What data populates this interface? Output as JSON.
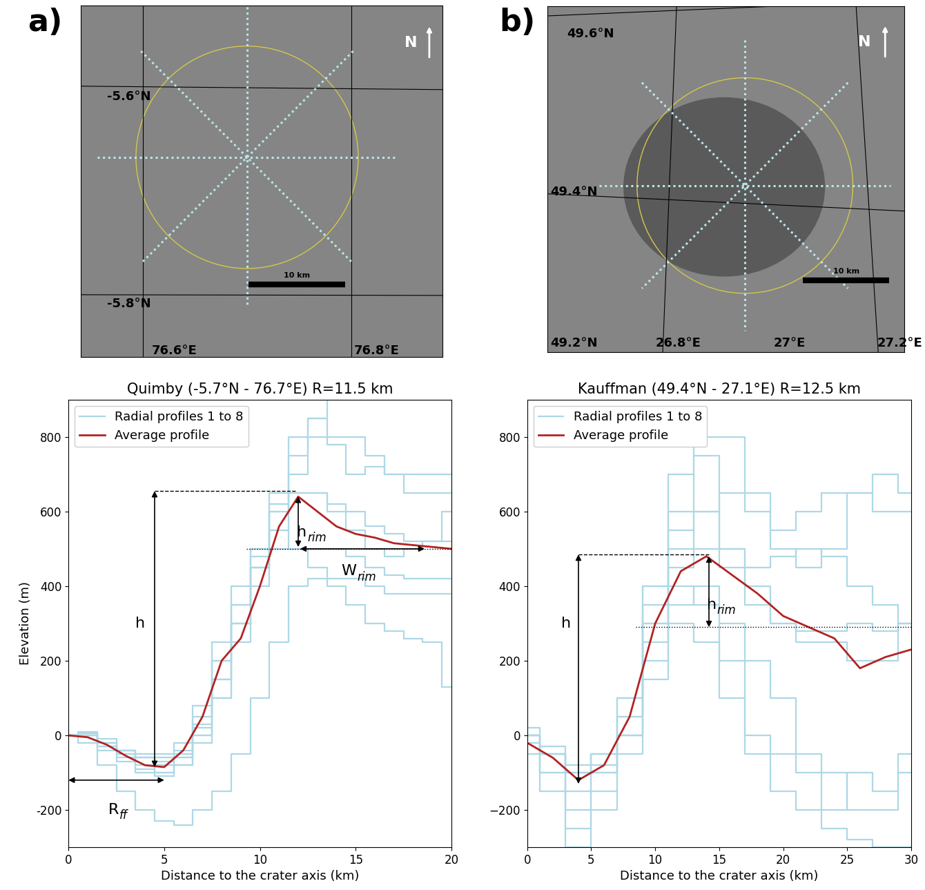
{
  "figure": {
    "panel_labels": [
      "a)",
      "b)"
    ]
  },
  "images": [
    {
      "north": "N",
      "scale_bar": {
        "length": 10,
        "label": "10 km"
      },
      "crater_radius_km": 11.5,
      "lat_labels": [
        "-5.6°N",
        "-5.8°N"
      ],
      "lon_labels": [
        "76.6°E",
        "76.8°E"
      ]
    },
    {
      "north": "N",
      "scale_bar": {
        "length": 10,
        "label": "10 km"
      },
      "crater_radius_km": 12.5,
      "lat_labels": [
        "49.6°N",
        "49.4°N",
        "49.2°N"
      ],
      "lon_labels": [
        "26.8°E",
        "27°E",
        "27.2°E"
      ]
    }
  ],
  "chart_data": [
    {
      "type": "line",
      "title": "Quimby (-5.7°N - 76.7°E) R=11.5 km",
      "xlabel": "Distance to the crater axis (km)",
      "ylabel": "Elevation (m)",
      "xlim": [
        0,
        20
      ],
      "ylim": [
        -300,
        900
      ],
      "xticks": [
        0,
        5,
        10,
        15,
        20
      ],
      "yticks": [
        -200,
        0,
        200,
        400,
        600,
        800
      ],
      "legend": "upper left",
      "x": [
        0,
        1,
        2,
        3,
        4,
        5,
        6,
        7,
        8,
        9,
        10,
        11,
        12,
        13,
        14,
        15,
        16,
        17,
        18,
        19,
        20
      ],
      "series": [
        {
          "name": "Radial profiles 1 to 8",
          "color": "#add8e6",
          "line_style": "steps",
          "values": [
            [
              0,
              10,
              -10,
              -40,
              -50,
              -50,
              -20,
              80,
              200,
              350,
              500,
              650,
              650,
              650,
              620,
              600,
              560,
              540,
              520,
              520,
              520
            ],
            [
              0,
              5,
              -20,
              -50,
              -80,
              -100,
              -60,
              20,
              150,
              300,
              450,
              620,
              800,
              800,
              780,
              700,
              720,
              700,
              650,
              650,
              650
            ],
            [
              0,
              0,
              -30,
              -60,
              -100,
              -110,
              -80,
              0,
              100,
              250,
              400,
              600,
              750,
              850,
              900,
              900,
              900,
              900,
              900,
              900,
              900
            ],
            [
              0,
              -20,
              -80,
              -150,
              -200,
              -230,
              -240,
              -200,
              -150,
              -50,
              100,
              250,
              400,
              420,
              420,
              420,
              400,
              380,
              380,
              380,
              380
            ],
            [
              0,
              0,
              -40,
              -70,
              -90,
              -100,
              -80,
              -20,
              100,
              300,
              450,
              500,
              500,
              500,
              500,
              480,
              450,
              430,
              420,
              420,
              420
            ],
            [
              0,
              0,
              -30,
              -50,
              -60,
              -60,
              -40,
              50,
              250,
              400,
              500,
              600,
              650,
              650,
              600,
              550,
              500,
              480,
              500,
              520,
              600
            ],
            [
              0,
              5,
              -20,
              -40,
              -60,
              -70,
              -50,
              30,
              200,
              350,
              480,
              550,
              500,
              450,
              400,
              350,
              300,
              280,
              260,
              250,
              130
            ],
            [
              0,
              0,
              -20,
              -40,
              -60,
              -80,
              -60,
              0,
              150,
              300,
              450,
              550,
              700,
              850,
              800,
              800,
              750,
              700,
              700,
              700,
              700
            ]
          ]
        },
        {
          "name": "Average profile",
          "color": "#b22222",
          "line_style": "solid",
          "values": [
            0,
            -5,
            -25,
            -55,
            -80,
            -85,
            -40,
            50,
            200,
            260,
            400,
            560,
            640,
            600,
            560,
            540,
            530,
            515,
            510,
            505,
            500
          ]
        }
      ],
      "annotations": [
        {
          "type": "double_arrow",
          "from": [
            4.5,
            -85
          ],
          "to": [
            4.5,
            655
          ]
        },
        {
          "type": "dashed",
          "from": [
            4.5,
            655
          ],
          "to": [
            11.9,
            655
          ]
        },
        {
          "type": "double_arrow",
          "from": [
            12,
            640
          ],
          "to": [
            12,
            505
          ]
        },
        {
          "type": "dotted",
          "from": [
            9.3,
            500
          ],
          "to": [
            20,
            500
          ]
        },
        {
          "type": "double_arrow",
          "from": [
            12.1,
            500
          ],
          "to": [
            18.6,
            500
          ]
        },
        {
          "type": "double_arrow",
          "from": [
            0,
            -120
          ],
          "to": [
            5,
            -120
          ]
        },
        {
          "type": "label",
          "text": "h",
          "subscript": "",
          "at": [
            4.0,
            300
          ]
        },
        {
          "type": "label",
          "text": "h",
          "subscript": "rim",
          "at": [
            12.45,
            545
          ]
        },
        {
          "type": "label",
          "text": "W",
          "subscript": "rim",
          "at": [
            15.05,
            440
          ]
        },
        {
          "type": "label",
          "text": "R",
          "subscript": "ff",
          "at": [
            2.65,
            -200
          ]
        }
      ]
    },
    {
      "type": "line",
      "title": "Kauffman (49.4°N - 27.1°E) R=12.5 km",
      "xlabel": "Distance to the crater axis (km)",
      "xlim": [
        0,
        30
      ],
      "ylim": [
        -300,
        900
      ],
      "xticks": [
        0,
        5,
        10,
        15,
        20,
        25,
        30
      ],
      "yticks": [
        {
          "value": -200,
          "label": "−200"
        },
        0,
        200,
        400,
        600,
        800
      ],
      "legend": "upper left",
      "x": [
        0,
        2,
        4,
        6,
        8,
        10,
        12,
        14,
        16,
        18,
        20,
        22,
        24,
        26,
        28,
        30
      ],
      "series": [
        {
          "name": "Radial profiles 1 to 8",
          "color": "#add8e6",
          "line_style": "steps",
          "values": [
            [
              0,
              -100,
              -150,
              -50,
              100,
              400,
              700,
              800,
              800,
              650,
              500,
              450,
              500,
              650,
              700,
              650
            ],
            [
              0,
              -50,
              -200,
              -100,
              0,
              300,
              600,
              750,
              500,
              450,
              480,
              500,
              480,
              400,
              350,
              300
            ],
            [
              -50,
              -100,
              -250,
              -200,
              50,
              350,
              500,
              600,
              650,
              600,
              550,
              600,
              650,
              650,
              600,
              600
            ],
            [
              0,
              -150,
              -300,
              -150,
              50,
              300,
              400,
              350,
              200,
              0,
              -50,
              -100,
              -200,
              -100,
              -150,
              -100
            ],
            [
              20,
              -50,
              -100,
              -100,
              -50,
              150,
              350,
              400,
              300,
              200,
              100,
              -50,
              -100,
              -200,
              -200,
              -50
            ],
            [
              0,
              -50,
              -100,
              -50,
              100,
              400,
              550,
              600,
              500,
              400,
              300,
              250,
              250,
              200,
              200,
              300
            ],
            [
              -20,
              -50,
              -100,
              -80,
              0,
              250,
              450,
              500,
              450,
              350,
              300,
              280,
              280,
              300,
              280,
              300
            ],
            [
              0,
              -30,
              -80,
              -50,
              0,
              200,
              300,
              250,
              100,
              -50,
              -150,
              -200,
              -250,
              -280,
              -300,
              -300
            ]
          ]
        },
        {
          "name": "Average profile",
          "color": "#b22222",
          "line_style": "solid",
          "values": [
            -20,
            -60,
            -120,
            -80,
            50,
            300,
            440,
            480,
            430,
            380,
            320,
            290,
            260,
            180,
            210,
            230
          ]
        }
      ],
      "annotations": [
        {
          "type": "double_arrow",
          "from": [
            4,
            -130
          ],
          "to": [
            4,
            485
          ]
        },
        {
          "type": "dashed",
          "from": [
            4,
            485
          ],
          "to": [
            14.2,
            485
          ]
        },
        {
          "type": "double_arrow",
          "from": [
            14.2,
            480
          ],
          "to": [
            14.2,
            290
          ]
        },
        {
          "type": "dotted",
          "from": [
            8.5,
            290
          ],
          "to": [
            30,
            290
          ]
        },
        {
          "type": "label",
          "text": "h",
          "subscript": "",
          "at": [
            3.4,
            300
          ]
        },
        {
          "type": "label",
          "text": "h",
          "subscript": "rim",
          "at": [
            14.8,
            350
          ]
        }
      ]
    }
  ]
}
